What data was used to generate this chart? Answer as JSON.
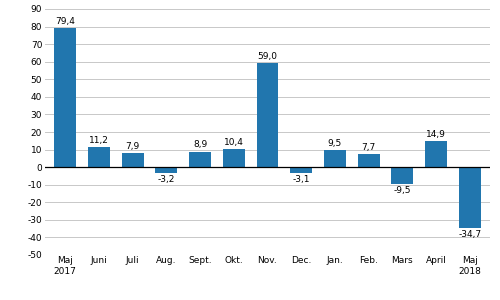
{
  "categories": [
    "Maj\n2017",
    "Juni",
    "Juli",
    "Aug.",
    "Sept.",
    "Okt.",
    "Nov.",
    "Dec.",
    "Jan.",
    "Feb.",
    "Mars",
    "April",
    "Maj\n2018"
  ],
  "values": [
    79.4,
    11.2,
    7.9,
    -3.2,
    8.9,
    10.4,
    59.0,
    -3.1,
    9.5,
    7.7,
    -9.5,
    14.9,
    -34.7
  ],
  "bar_color": "#2176ae",
  "ylim": [
    -50,
    90
  ],
  "yticks": [
    -50,
    -40,
    -30,
    -20,
    -10,
    0,
    10,
    20,
    30,
    40,
    50,
    60,
    70,
    80,
    90
  ],
  "value_fontsize": 6.5,
  "tick_fontsize": 6.5,
  "background_color": "#ffffff",
  "grid_color": "#c8c8c8"
}
